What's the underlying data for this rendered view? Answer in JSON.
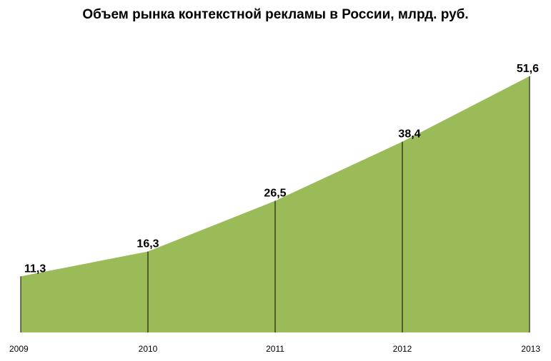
{
  "chart_data": {
    "type": "area",
    "title": "Объем рынка контекстной рекламы в России, млрд. руб.",
    "xlabel": "",
    "ylabel": "",
    "categories": [
      "2009",
      "2010",
      "2011",
      "2012",
      "2013"
    ],
    "values": [
      11.3,
      16.3,
      26.5,
      38.4,
      51.6
    ],
    "value_labels": [
      "11,3",
      "16,3",
      "26,5",
      "38,4",
      "51,6"
    ],
    "ylim": [
      0,
      52
    ],
    "grid": false,
    "legend": "none",
    "fill_color": "#9bbb59",
    "drop_line_color": "#000000"
  }
}
